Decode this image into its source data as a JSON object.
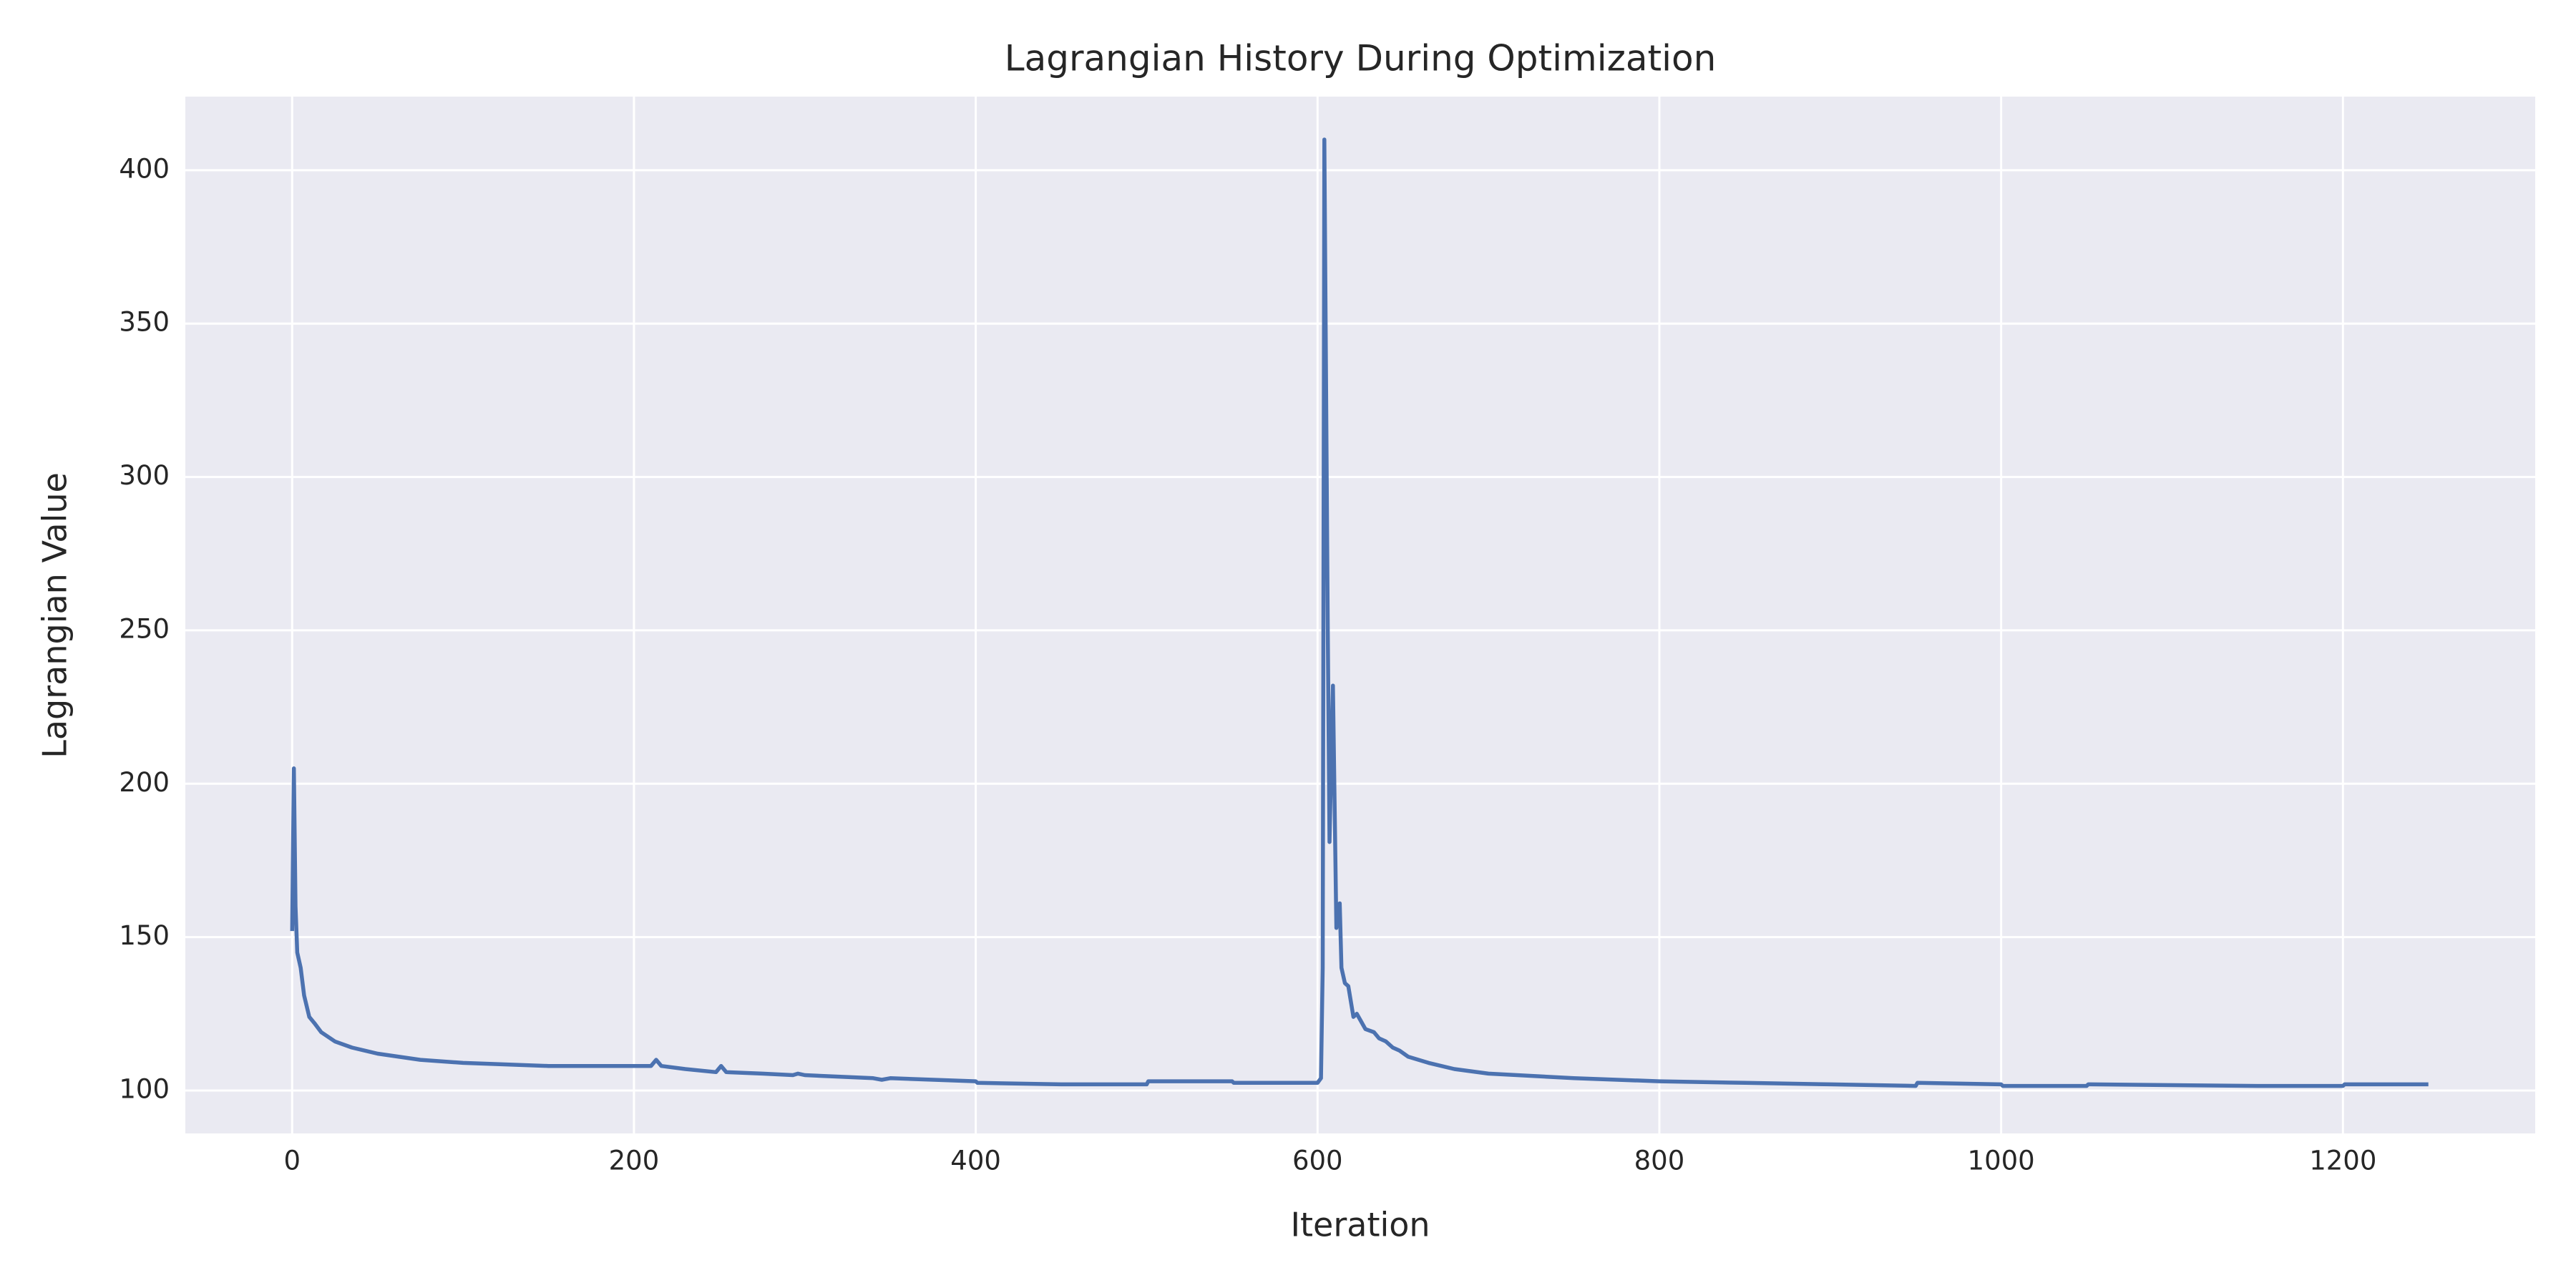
{
  "chart_data": {
    "type": "line",
    "title": "Lagrangian History During Optimization",
    "x_label": "Iteration",
    "y_label": "Lagrangian Value",
    "xlim": [
      -62.5,
      1312.5
    ],
    "ylim": [
      86,
      424
    ],
    "xticks": [
      0,
      200,
      400,
      600,
      800,
      1000,
      1200
    ],
    "yticks": [
      100,
      150,
      200,
      250,
      300,
      350,
      400
    ],
    "grid": true,
    "background": "#eaeaf2",
    "series": [
      {
        "color": "#4c72b0",
        "x": [
          0,
          1,
          2,
          3,
          5,
          7,
          10,
          13,
          17,
          25,
          35,
          50,
          75,
          100,
          150,
          200,
          210,
          213,
          216,
          230,
          248,
          251,
          254,
          275,
          293,
          296,
          300,
          340,
          345,
          350,
          400,
          401,
          450,
          500,
          501,
          550,
          551,
          600,
          602,
          603,
          604,
          606,
          607,
          609,
          611,
          613,
          614,
          616,
          618,
          621,
          623,
          625,
          628,
          633,
          636,
          640,
          644,
          648,
          653,
          665,
          680,
          700,
          750,
          800,
          850,
          900,
          950,
          951,
          1000,
          1001,
          1050,
          1051,
          1150,
          1200,
          1201,
          1250
        ],
        "values": [
          152,
          205,
          160,
          145,
          140,
          131,
          124,
          122,
          119,
          116,
          114,
          112,
          110,
          109,
          108,
          108,
          108,
          110,
          108,
          107,
          106,
          108,
          106,
          105.5,
          105,
          105.5,
          105,
          104,
          103.5,
          104,
          103,
          102.5,
          102,
          102,
          103,
          103,
          102.5,
          102.5,
          104,
          140,
          410,
          250,
          181,
          232,
          153,
          161,
          140,
          135,
          134,
          124,
          125,
          123,
          120,
          119,
          117,
          116,
          114,
          113,
          111,
          109,
          107,
          105.5,
          104,
          103,
          102.5,
          102,
          101.5,
          102.5,
          102,
          101.5,
          101.5,
          102,
          101.5,
          101.5,
          102,
          102
        ]
      }
    ]
  }
}
